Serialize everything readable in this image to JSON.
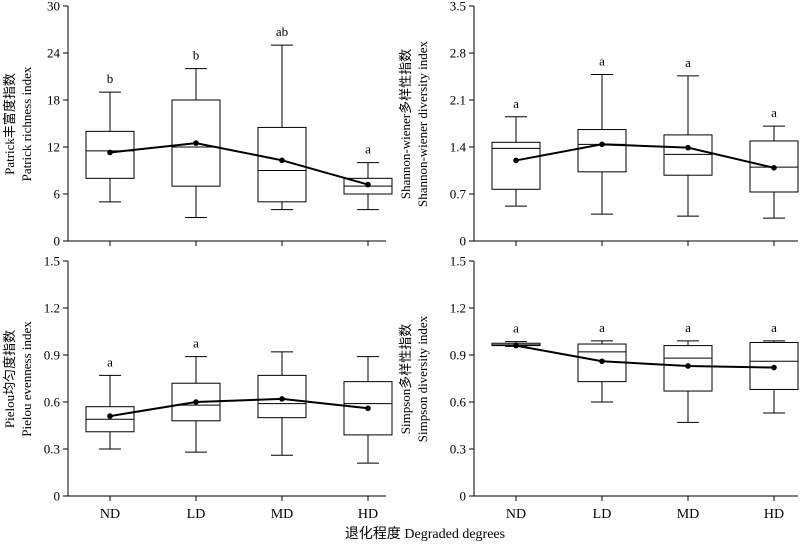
{
  "figure": {
    "xlabel": "退化程度 Degraded degrees"
  },
  "chart_data": [
    {
      "type": "box",
      "ylabel_cn": "Patrick丰富度指数",
      "ylabel_en": "Patrick richness index",
      "ylim": [
        0,
        30
      ],
      "yticks": [
        "0",
        "6",
        "12",
        "18",
        "24",
        "30"
      ],
      "categories": [
        "ND",
        "LD",
        "MD",
        "HD"
      ],
      "boxes": [
        {
          "min": 5,
          "q1": 8,
          "median": 11.5,
          "q3": 14,
          "max": 19
        },
        {
          "min": 3,
          "q1": 7,
          "median": 12,
          "q3": 18,
          "max": 22
        },
        {
          "min": 4,
          "q1": 5,
          "median": 9,
          "q3": 14.5,
          "max": 25
        },
        {
          "min": 4,
          "q1": 6,
          "median": 7,
          "q3": 8,
          "max": 10
        }
      ],
      "means": [
        11.3,
        12.5,
        10.3,
        7.2
      ],
      "letters": [
        "b",
        "b",
        "ab",
        "a"
      ],
      "grid": false
    },
    {
      "type": "box",
      "ylabel_cn": "Shannon-wiener多样性指数",
      "ylabel_en": "Shannon-wiener diversity index",
      "ylim": [
        0,
        3.5
      ],
      "yticks": [
        "0",
        "0.7",
        "1.4",
        "2.1",
        "2.8",
        "3.5"
      ],
      "categories": [
        "ND",
        "LD",
        "MD",
        "HD"
      ],
      "boxes": [
        {
          "min": 0.52,
          "q1": 0.77,
          "median": 1.38,
          "q3": 1.47,
          "max": 1.85
        },
        {
          "min": 0.4,
          "q1": 1.03,
          "median": 1.44,
          "q3": 1.66,
          "max": 2.48
        },
        {
          "min": 0.37,
          "q1": 0.98,
          "median": 1.29,
          "q3": 1.58,
          "max": 2.46
        },
        {
          "min": 0.34,
          "q1": 0.73,
          "median": 1.1,
          "q3": 1.49,
          "max": 1.71
        }
      ],
      "means": [
        1.2,
        1.44,
        1.39,
        1.09
      ],
      "letters": [
        "a",
        "a",
        "a",
        "a"
      ],
      "grid": false
    },
    {
      "type": "box",
      "ylabel_cn": "Pielou均匀度指数",
      "ylabel_en": "Pielou evenness index",
      "ylim": [
        0,
        1.5
      ],
      "yticks": [
        "0",
        "0.3",
        "0.6",
        "0.9",
        "1.2",
        "1.5"
      ],
      "categories": [
        "ND",
        "LD",
        "MD",
        "HD"
      ],
      "boxes": [
        {
          "min": 0.3,
          "q1": 0.41,
          "median": 0.49,
          "q3": 0.57,
          "max": 0.77
        },
        {
          "min": 0.28,
          "q1": 0.48,
          "median": 0.58,
          "q3": 0.72,
          "max": 0.89
        },
        {
          "min": 0.26,
          "q1": 0.5,
          "median": 0.59,
          "q3": 0.77,
          "max": 0.92
        },
        {
          "min": 0.21,
          "q1": 0.39,
          "median": 0.59,
          "q3": 0.73,
          "max": 0.89
        }
      ],
      "means": [
        0.51,
        0.6,
        0.62,
        0.56
      ],
      "letters": [
        "a",
        "a",
        "",
        ""
      ],
      "grid": false
    },
    {
      "type": "box",
      "ylabel_cn": "Simpson多样性指数",
      "ylabel_en": "Simpson diversity index",
      "ylim": [
        0,
        1.5
      ],
      "yticks": [
        "0",
        "0.3",
        "0.6",
        "0.9",
        "1.2",
        "1.5"
      ],
      "categories": [
        "ND",
        "LD",
        "MD",
        "HD"
      ],
      "boxes": [
        {
          "min": 0.955,
          "q1": 0.96,
          "median": 0.965,
          "q3": 0.975,
          "max": 0.985
        },
        {
          "min": 0.6,
          "q1": 0.73,
          "median": 0.92,
          "q3": 0.97,
          "max": 0.99
        },
        {
          "min": 0.47,
          "q1": 0.67,
          "median": 0.88,
          "q3": 0.96,
          "max": 0.99
        },
        {
          "min": 0.53,
          "q1": 0.68,
          "median": 0.86,
          "q3": 0.98,
          "max": 0.99
        }
      ],
      "means": [
        0.96,
        0.86,
        0.83,
        0.82
      ],
      "letters": [
        "a",
        "a",
        "a",
        "a"
      ],
      "grid": false
    }
  ]
}
